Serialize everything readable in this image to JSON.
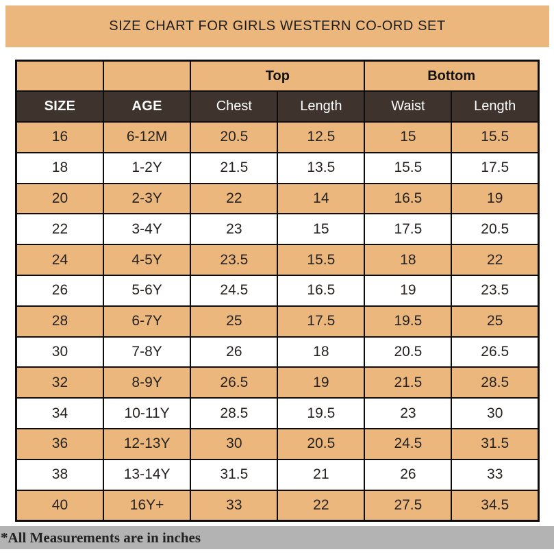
{
  "title": "SIZE CHART FOR GIRLS WESTERN CO-ORD SET",
  "table": {
    "group_top_label": "Top",
    "group_bottom_label": "Bottom",
    "column_headers": [
      "SIZE",
      "AGE",
      "Chest",
      "Length",
      "Waist",
      "Length"
    ]
  },
  "footer_note": "*All Measurements are in inches",
  "colors": {
    "tan": "#ebb77d",
    "header_dark": "#3e342d",
    "footer_gray": "#b3b3b3",
    "border": "#0e0d0c",
    "text_dark": "#262220",
    "text_light": "#ffffff"
  },
  "chart_data": {
    "type": "table",
    "title": "SIZE CHART FOR GIRLS WESTERN CO-ORD SET",
    "units": "inches",
    "column_groups": [
      "",
      "",
      "Top",
      "Top",
      "Bottom",
      "Bottom"
    ],
    "columns": [
      "SIZE",
      "AGE",
      "Chest",
      "Length",
      "Waist",
      "Length"
    ],
    "rows": [
      [
        "16",
        "6-12M",
        "20.5",
        "12.5",
        "15",
        "15.5"
      ],
      [
        "18",
        "1-2Y",
        "21.5",
        "13.5",
        "15.5",
        "17.5"
      ],
      [
        "20",
        "2-3Y",
        "22",
        "14",
        "16.5",
        "19"
      ],
      [
        "22",
        "3-4Y",
        "23",
        "15",
        "17.5",
        "20.5"
      ],
      [
        "24",
        "4-5Y",
        "23.5",
        "15.5",
        "18",
        "22"
      ],
      [
        "26",
        "5-6Y",
        "24.5",
        "16.5",
        "19",
        "23.5"
      ],
      [
        "28",
        "6-7Y",
        "25",
        "17.5",
        "19.5",
        "25"
      ],
      [
        "30",
        "7-8Y",
        "26",
        "18",
        "20.5",
        "26.5"
      ],
      [
        "32",
        "8-9Y",
        "26.5",
        "19",
        "21.5",
        "28.5"
      ],
      [
        "34",
        "10-11Y",
        "28.5",
        "19.5",
        "23",
        "30"
      ],
      [
        "36",
        "12-13Y",
        "30",
        "20.5",
        "24.5",
        "31.5"
      ],
      [
        "38",
        "13-14Y",
        "31.5",
        "21",
        "26",
        "33"
      ],
      [
        "40",
        "16Y+",
        "33",
        "22",
        "27.5",
        "34.5"
      ]
    ],
    "note": "*All Measurements are in inches",
    "row_striping": "odd rows tan (#ebb77d), even rows white"
  }
}
